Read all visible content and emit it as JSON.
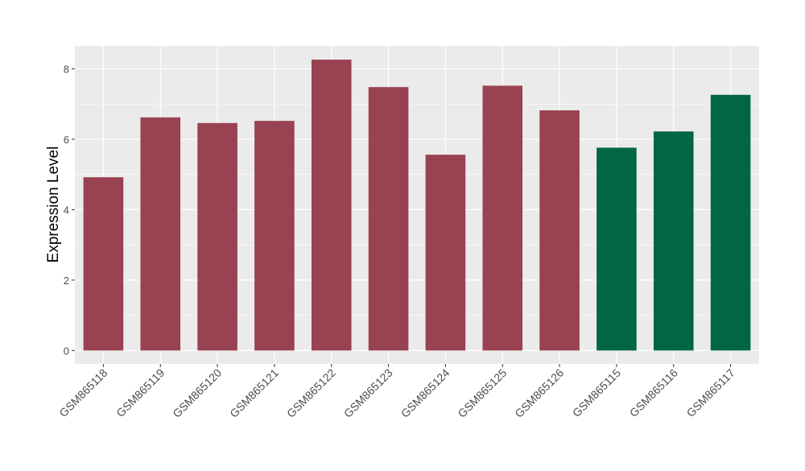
{
  "chart_data": {
    "type": "bar",
    "title": "",
    "xlabel": "",
    "ylabel": "Expression Level",
    "ylim": [
      -0.38,
      8.65
    ],
    "yticks": [
      0,
      2,
      4,
      6,
      8
    ],
    "grid": true,
    "categories": [
      "GSM865118",
      "GSM865119",
      "GSM865120",
      "GSM865121",
      "GSM865122",
      "GSM865123",
      "GSM865124",
      "GSM865125",
      "GSM865126",
      "GSM865115",
      "GSM865116",
      "GSM865117"
    ],
    "values": [
      4.92,
      6.62,
      6.46,
      6.52,
      8.26,
      7.48,
      5.56,
      7.52,
      6.82,
      5.76,
      6.22,
      7.26
    ],
    "groups": [
      0,
      0,
      0,
      0,
      0,
      0,
      0,
      0,
      0,
      1,
      1,
      1
    ],
    "group_colors": [
      "#994251",
      "#006645"
    ],
    "panel_background": "#ebebeb",
    "grid_color": "#ffffff"
  }
}
